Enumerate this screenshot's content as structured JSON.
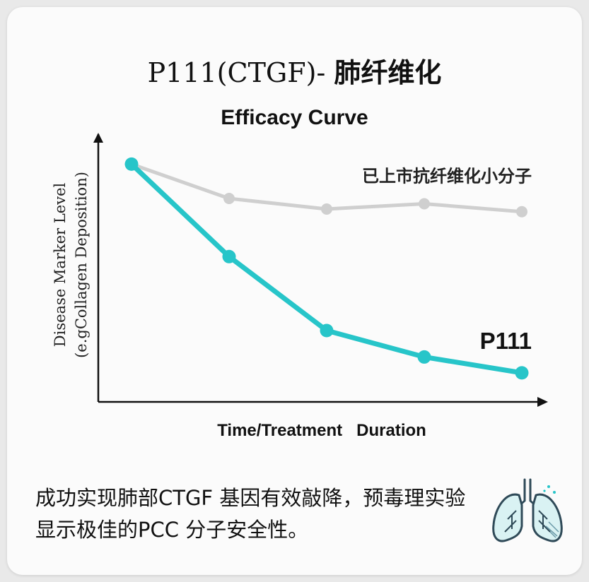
{
  "title_latin": "P111(CTGF)- ",
  "title_cjk": "肺纤维化",
  "footer_text": "成功实现肺部CTGF 基因有效敲降，预毒理实验显示极佳的PCC 分子安全性。",
  "icon": "lungs-icon",
  "colors": {
    "p111": "#27c5c9",
    "reference": "#cfcfcf",
    "axis": "#111111"
  },
  "chart_data": {
    "type": "line",
    "title": "Efficacy Curve",
    "xlabel": "Time/Treatment   Duration",
    "ylabel_line1": "Disease Marker Level",
    "ylabel_line2": "(e.gCollagen Deposition)",
    "x": [
      1,
      2,
      3,
      4,
      5
    ],
    "ylim": [
      0,
      100
    ],
    "grid": false,
    "series": [
      {
        "name": "已上市抗纤维化小分子",
        "values": [
          90,
          77,
          73,
          75,
          72
        ]
      },
      {
        "name": "P111",
        "values": [
          90,
          55,
          27,
          17,
          11
        ]
      }
    ]
  }
}
